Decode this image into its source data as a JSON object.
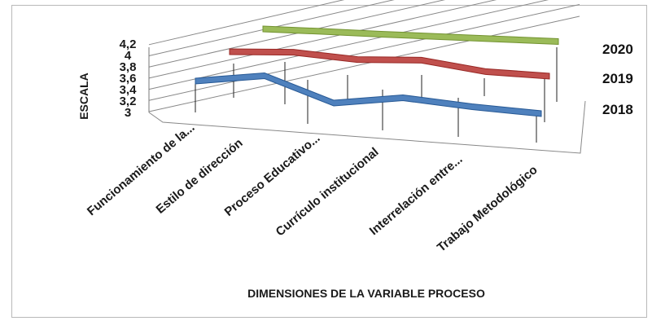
{
  "chart_data": {
    "type": "line",
    "style": "3d-ribbon",
    "categories": [
      "Funcionamiento de la...",
      "Estilo de dirección",
      "Proceso Educativo...",
      "Currículo institucional",
      "Interrelación entre...",
      "Trabajo Metodológico"
    ],
    "series": [
      {
        "name": "2018",
        "values": [
          3.6,
          3.85,
          3.3,
          3.55,
          3.45,
          3.4
        ],
        "color": "#4f81bd"
      },
      {
        "name": "2019",
        "values": [
          3.9,
          4.0,
          3.85,
          3.95,
          3.65,
          3.6
        ],
        "color": "#c0504d"
      },
      {
        "name": "2020",
        "values": [
          4.2,
          4.2,
          4.15,
          4.15,
          4.15,
          4.15
        ],
        "color": "#9bbb59"
      }
    ],
    "y_ticks": [
      "3",
      "3,2",
      "3,4",
      "3,6",
      "3,8",
      "4",
      "4,2"
    ],
    "ylim": [
      3,
      4.2
    ],
    "ylabel": "ESCALA",
    "xlabel": "DIMENSIONES DE LA VARIABLE PROCESO",
    "grid": true,
    "legend": "series labels on right depth axis"
  }
}
